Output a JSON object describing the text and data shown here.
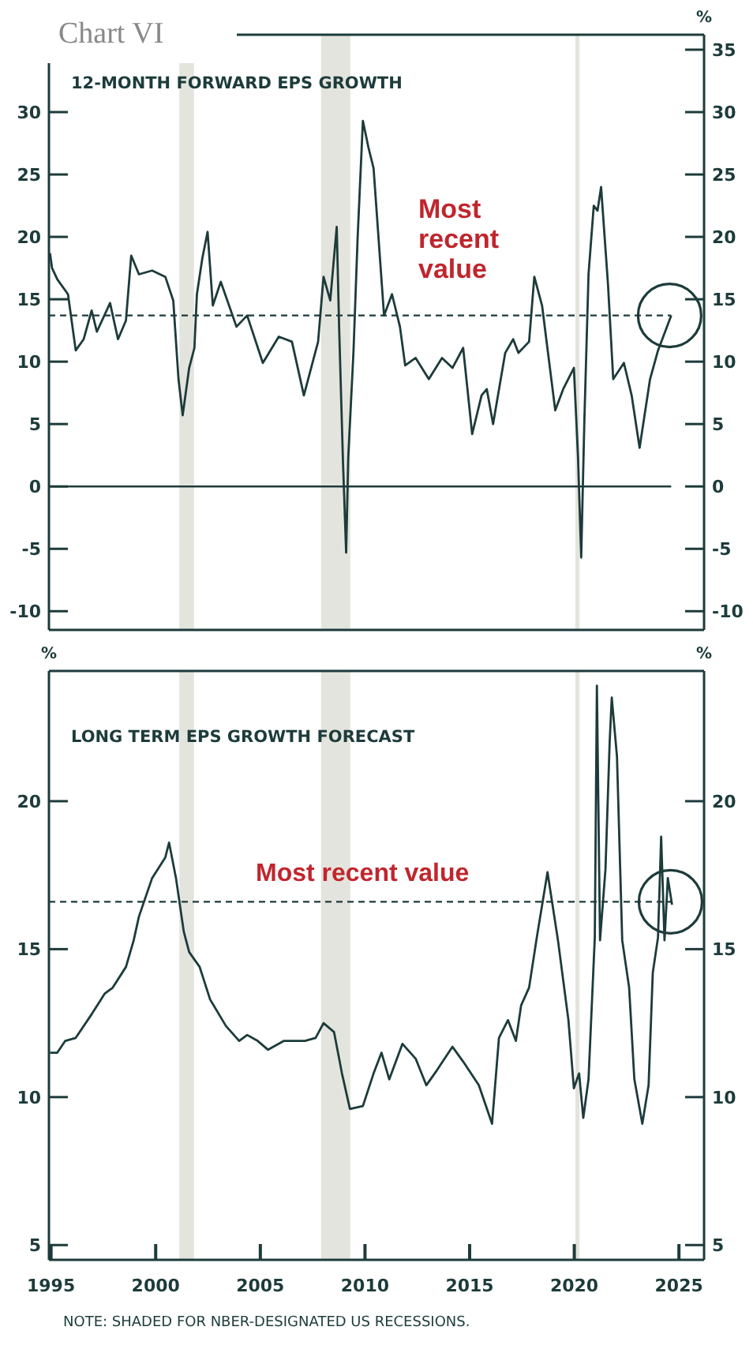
{
  "chart_data": [
    {
      "type": "line",
      "title": "Chart VI",
      "subtitle": "12-MONTH FORWARD EPS GROWTH",
      "y2label": "%",
      "tick_labels": "y",
      "xlim": [
        1994.9,
        2026.2
      ],
      "ylim": [
        -11.5,
        36.2
      ],
      "yticks": [
        -10,
        -5,
        0,
        5,
        10,
        15,
        20,
        25,
        30
      ],
      "y2lim": [
        -11.5,
        36.2
      ],
      "y2ticks": [
        -10,
        -5,
        0,
        5,
        10,
        15,
        20,
        25,
        30,
        35
      ],
      "bands": [
        {
          "axis": "x",
          "from": 2001.13,
          "to": 2001.83,
          "color": "#e4e4de"
        },
        {
          "axis": "x",
          "from": 2007.9,
          "to": 2009.3,
          "color": "#e4e4de"
        },
        {
          "axis": "x",
          "from": 2020.05,
          "to": 2020.25,
          "color": "#e4e4de"
        }
      ],
      "ref_lines": [
        {
          "axis": "y",
          "value": 0,
          "line_style": "solid",
          "color": "#1d3b3b"
        },
        {
          "axis": "y",
          "value": 13.7,
          "label": "Most recent value",
          "line_style": "dashed",
          "color": "#1d3b3b"
        }
      ],
      "series": [
        {
          "color": "#1d3b3b",
          "x": [
            1994.95,
            1995.05,
            1995.3,
            1995.81,
            1996.18,
            1996.56,
            1996.94,
            1997.19,
            1997.82,
            1998.2,
            1998.58,
            1998.83,
            1999.2,
            1999.83,
            2000.46,
            2000.84,
            2001.09,
            2001.29,
            2001.6,
            2001.85,
            2001.97,
            2002.23,
            2002.48,
            2002.73,
            2003.11,
            2003.86,
            2004.37,
            2005.12,
            2005.88,
            2006.51,
            2007.08,
            2007.76,
            2008.02,
            2008.34,
            2008.65,
            2008.77,
            2008.95,
            2009.1,
            2009.2,
            2009.45,
            2009.65,
            2009.9,
            2010.16,
            2010.41,
            2010.91,
            2011.29,
            2011.67,
            2011.92,
            2012.42,
            2013.05,
            2013.68,
            2014.18,
            2014.69,
            2015.12,
            2015.57,
            2015.82,
            2016.12,
            2016.7,
            2017.08,
            2017.33,
            2017.84,
            2018.09,
            2018.46,
            2019.09,
            2019.47,
            2019.98,
            2020.18,
            2020.33,
            2020.48,
            2020.68,
            2020.93,
            2021.11,
            2021.28,
            2021.61,
            2021.86,
            2022.37,
            2022.74,
            2023.12,
            2023.62,
            2024.0,
            2024.63
          ],
          "values": [
            18.7,
            17.5,
            16.6,
            15.4,
            10.9,
            11.8,
            14.1,
            12.4,
            14.7,
            11.8,
            13.3,
            18.5,
            17.0,
            17.3,
            16.8,
            14.9,
            8.6,
            5.7,
            9.5,
            11.1,
            15.4,
            18.3,
            20.4,
            14.5,
            16.4,
            12.8,
            13.7,
            9.9,
            12.0,
            11.6,
            7.3,
            11.6,
            16.8,
            14.9,
            20.8,
            12.4,
            1.9,
            -5.3,
            2.3,
            10.8,
            20.0,
            29.3,
            27.2,
            25.5,
            13.7,
            15.4,
            12.8,
            9.7,
            10.3,
            8.6,
            10.3,
            9.5,
            11.1,
            4.2,
            7.3,
            7.8,
            5.0,
            10.7,
            11.8,
            10.7,
            11.6,
            16.8,
            14.5,
            6.1,
            7.8,
            9.5,
            2.3,
            -5.7,
            5.2,
            17.0,
            22.5,
            22.1,
            24.0,
            16.2,
            8.6,
            9.9,
            7.3,
            3.1,
            8.6,
            10.9,
            13.7
          ]
        }
      ]
    },
    {
      "type": "line",
      "subtitle": "LONG TERM EPS GROWTH FORECAST",
      "ylabel": "%",
      "y2label": "%",
      "xlim": [
        1994.9,
        2026.2
      ],
      "xticks": [
        1995,
        2000,
        2005,
        2010,
        2015,
        2020,
        2025
      ],
      "ylim": [
        4.5,
        24.4
      ],
      "yticks": [
        5,
        10,
        15,
        20
      ],
      "y2lim": [
        4.5,
        24.4
      ],
      "y2ticks": [
        5,
        10,
        15,
        20
      ],
      "bands": [
        {
          "axis": "x",
          "from": 2001.13,
          "to": 2001.83,
          "color": "#e4e4de"
        },
        {
          "axis": "x",
          "from": 2007.9,
          "to": 2009.3,
          "color": "#e4e4de"
        },
        {
          "axis": "x",
          "from": 2020.05,
          "to": 2020.25,
          "color": "#e4e4de"
        }
      ],
      "ref_lines": [
        {
          "axis": "y",
          "value": 16.6,
          "label": "Most recent value",
          "line_style": "dashed",
          "color": "#1d3b3b"
        }
      ],
      "annotations": [
        "NOTE: SHADED FOR NBER-DESIGNATED US RECESSIONS."
      ],
      "series": [
        {
          "color": "#1d3b3b",
          "x": [
            1994.95,
            1995.3,
            1995.68,
            1996.18,
            1996.94,
            1997.57,
            1997.95,
            1998.58,
            1998.95,
            1999.2,
            1999.83,
            2000.46,
            2000.64,
            2000.97,
            2001.34,
            2001.6,
            2002.1,
            2002.6,
            2003.36,
            2003.99,
            2004.37,
            2004.87,
            2005.37,
            2006.13,
            2007.13,
            2007.64,
            2008.02,
            2008.52,
            2008.9,
            2009.28,
            2009.9,
            2010.41,
            2010.79,
            2011.16,
            2011.79,
            2012.42,
            2012.93,
            2013.43,
            2014.18,
            2014.69,
            2015.44,
            2016.07,
            2016.4,
            2016.83,
            2017.21,
            2017.46,
            2017.84,
            2018.21,
            2018.72,
            2019.22,
            2019.72,
            2019.98,
            2020.23,
            2020.43,
            2020.68,
            2020.98,
            2021.08,
            2021.23,
            2021.49,
            2021.69,
            2021.79,
            2022.04,
            2022.29,
            2022.62,
            2022.87,
            2023.25,
            2023.55,
            2023.75,
            2024.0,
            2024.15,
            2024.31,
            2024.47,
            2024.67
          ],
          "values": [
            11.5,
            11.5,
            11.9,
            12.0,
            12.8,
            13.5,
            13.7,
            14.4,
            15.3,
            16.1,
            17.4,
            18.1,
            18.6,
            17.4,
            15.6,
            14.9,
            14.4,
            13.3,
            12.4,
            11.9,
            12.1,
            11.9,
            11.6,
            11.9,
            11.9,
            12.0,
            12.5,
            12.2,
            10.8,
            9.6,
            9.7,
            10.8,
            11.5,
            10.6,
            11.8,
            11.3,
            10.4,
            10.9,
            11.7,
            11.2,
            10.4,
            9.1,
            12.0,
            12.6,
            11.9,
            13.1,
            13.7,
            15.4,
            17.6,
            15.3,
            12.6,
            10.3,
            10.8,
            9.3,
            10.6,
            15.4,
            23.9,
            15.3,
            17.7,
            22.0,
            23.5,
            21.5,
            15.3,
            13.7,
            10.6,
            9.1,
            10.4,
            14.2,
            15.4,
            18.8,
            15.3,
            17.4,
            16.5
          ]
        }
      ]
    }
  ]
}
